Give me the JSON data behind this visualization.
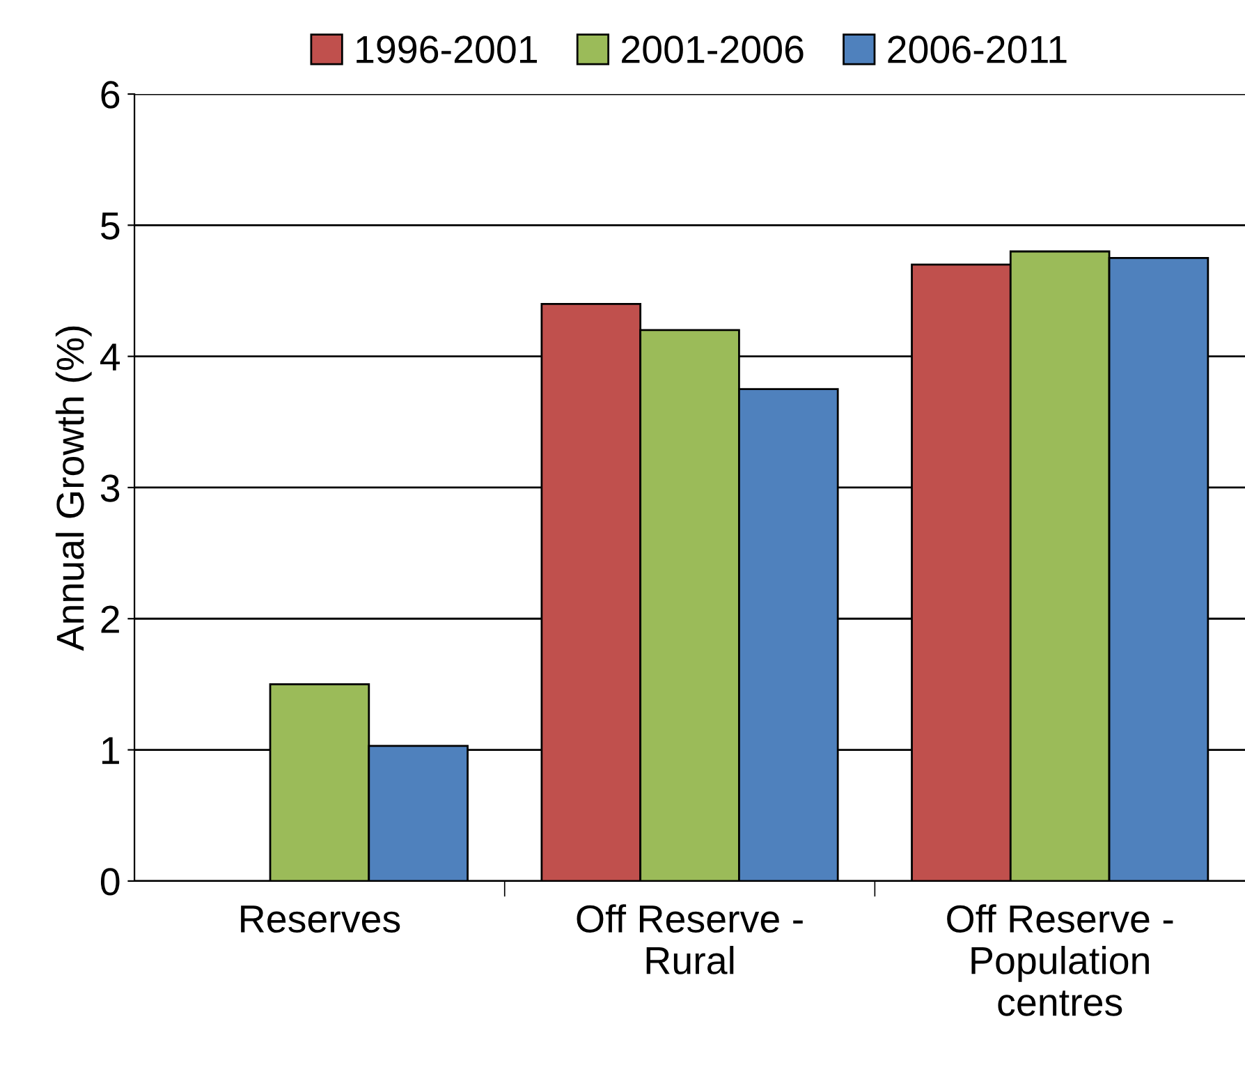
{
  "chart_data": {
    "type": "bar",
    "ylabel": "Annual Growth (%)",
    "categories": [
      "Reserves",
      "Off Reserve -\nRural",
      "Off Reserve -\nPopulation\ncentres"
    ],
    "series": [
      {
        "name": "1996-2001",
        "color": "#c0504d",
        "values": [
          null,
          4.4,
          4.7
        ]
      },
      {
        "name": "2001-2006",
        "color": "#9bbb59",
        "values": [
          1.5,
          4.2,
          4.8
        ]
      },
      {
        "name": "2006-2011",
        "color": "#4f81bd",
        "values": [
          1.03,
          3.75,
          4.75
        ]
      }
    ],
    "ylim": [
      0,
      6
    ],
    "yticks": [
      0,
      1,
      2,
      3,
      4,
      5,
      6
    ],
    "grid": "y",
    "legend": "top"
  }
}
